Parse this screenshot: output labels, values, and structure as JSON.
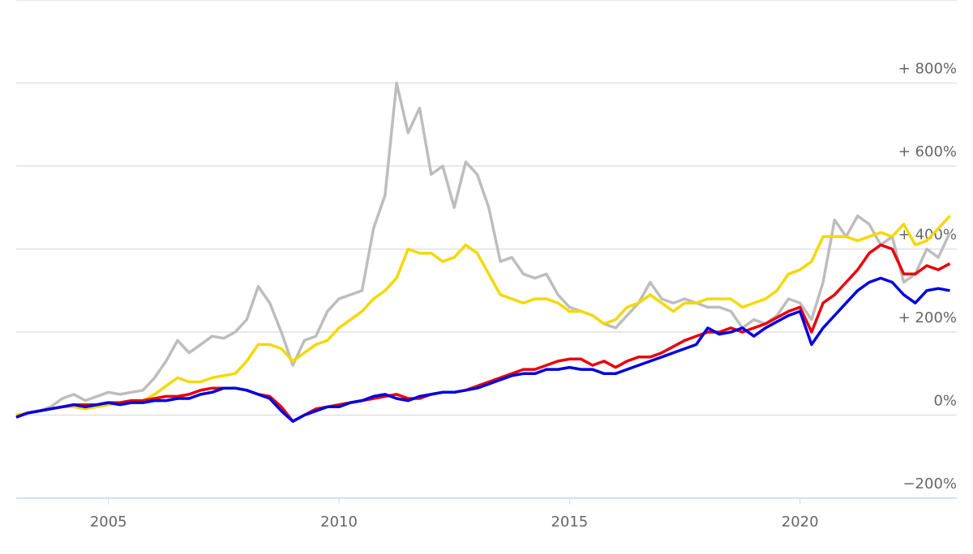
{
  "chart_data": {
    "type": "line",
    "x": [
      2003,
      2003.25,
      2003.5,
      2003.75,
      2004,
      2004.25,
      2004.5,
      2004.75,
      2005,
      2005.25,
      2005.5,
      2005.75,
      2006,
      2006.25,
      2006.5,
      2006.75,
      2007,
      2007.25,
      2007.5,
      2007.75,
      2008,
      2008.25,
      2008.5,
      2008.75,
      2009,
      2009.25,
      2009.5,
      2009.75,
      2010,
      2010.25,
      2010.5,
      2010.75,
      2011,
      2011.25,
      2011.5,
      2011.75,
      2012,
      2012.25,
      2012.5,
      2012.75,
      2013,
      2013.25,
      2013.5,
      2013.75,
      2014,
      2014.25,
      2014.5,
      2014.75,
      2015,
      2015.25,
      2015.5,
      2015.75,
      2016,
      2016.25,
      2016.5,
      2016.75,
      2017,
      2017.25,
      2017.5,
      2017.75,
      2018,
      2018.25,
      2018.5,
      2018.75,
      2019,
      2019.25,
      2019.5,
      2019.75,
      2020,
      2020.25,
      2020.5,
      2020.75,
      2021,
      2021.25,
      2021.5,
      2021.75,
      2022,
      2022.25,
      2022.5,
      2022.75,
      2023,
      2023.25
    ],
    "series": [
      {
        "color": "#bdbdbd",
        "values": [
          0,
          5,
          10,
          20,
          40,
          50,
          35,
          45,
          55,
          50,
          55,
          60,
          90,
          130,
          180,
          150,
          170,
          190,
          185,
          200,
          230,
          310,
          270,
          200,
          120,
          180,
          190,
          250,
          280,
          290,
          300,
          450,
          530,
          800,
          680,
          740,
          580,
          600,
          500,
          610,
          580,
          500,
          370,
          380,
          340,
          330,
          340,
          290,
          260,
          250,
          240,
          220,
          210,
          240,
          270,
          320,
          280,
          270,
          280,
          270,
          260,
          260,
          250,
          210,
          230,
          220,
          240,
          280,
          270,
          230,
          320,
          470,
          430,
          480,
          460,
          410,
          430,
          320,
          340,
          400,
          380,
          440
        ]
      },
      {
        "color": "#f5d800",
        "values": [
          0,
          5,
          10,
          15,
          20,
          20,
          15,
          20,
          25,
          30,
          30,
          35,
          50,
          70,
          90,
          80,
          80,
          90,
          95,
          100,
          130,
          170,
          170,
          160,
          130,
          150,
          170,
          180,
          210,
          230,
          250,
          280,
          300,
          330,
          400,
          390,
          390,
          370,
          380,
          410,
          390,
          340,
          290,
          280,
          270,
          280,
          280,
          270,
          250,
          250,
          240,
          220,
          230,
          260,
          270,
          290,
          270,
          250,
          270,
          270,
          280,
          280,
          280,
          260,
          270,
          280,
          300,
          340,
          350,
          370,
          430,
          430,
          430,
          420,
          430,
          440,
          430,
          460,
          410,
          420,
          450,
          480
        ]
      },
      {
        "color": "#e8000b",
        "values": [
          -5,
          5,
          10,
          15,
          20,
          25,
          25,
          25,
          30,
          30,
          35,
          35,
          40,
          45,
          45,
          50,
          60,
          65,
          65,
          65,
          60,
          50,
          45,
          20,
          -15,
          0,
          15,
          20,
          25,
          30,
          35,
          40,
          45,
          50,
          40,
          40,
          50,
          55,
          55,
          60,
          70,
          80,
          90,
          100,
          110,
          110,
          120,
          130,
          135,
          135,
          120,
          130,
          115,
          130,
          140,
          140,
          150,
          165,
          180,
          190,
          200,
          200,
          210,
          200,
          210,
          220,
          235,
          250,
          260,
          200,
          270,
          290,
          320,
          350,
          390,
          410,
          400,
          340,
          340,
          360,
          350,
          365
        ]
      },
      {
        "color": "#0000dd",
        "values": [
          -5,
          5,
          10,
          15,
          20,
          25,
          20,
          25,
          30,
          25,
          30,
          30,
          35,
          35,
          40,
          40,
          50,
          55,
          65,
          65,
          60,
          50,
          40,
          10,
          -15,
          0,
          10,
          20,
          20,
          30,
          35,
          45,
          50,
          40,
          35,
          45,
          50,
          55,
          55,
          60,
          65,
          75,
          85,
          95,
          100,
          100,
          110,
          110,
          115,
          110,
          110,
          100,
          100,
          110,
          120,
          130,
          140,
          150,
          160,
          170,
          210,
          195,
          200,
          210,
          190,
          210,
          225,
          240,
          250,
          170,
          210,
          240,
          270,
          300,
          320,
          330,
          320,
          290,
          270,
          300,
          305,
          300
        ]
      }
    ],
    "xlim": [
      2003,
      2023.4
    ],
    "xticks": [
      2005,
      2010,
      2015,
      2020
    ],
    "ylim": [
      -200,
      1000
    ],
    "yticks": [
      {
        "value": -200,
        "label": "−200%"
      },
      {
        "value": 0,
        "label": "0%"
      },
      {
        "value": 200,
        "label": "+ 200%"
      },
      {
        "value": 400,
        "label": "+ 400%"
      },
      {
        "value": 600,
        "label": "+ 600%"
      },
      {
        "value": 800,
        "label": "+ 800%"
      }
    ],
    "grid": true
  }
}
